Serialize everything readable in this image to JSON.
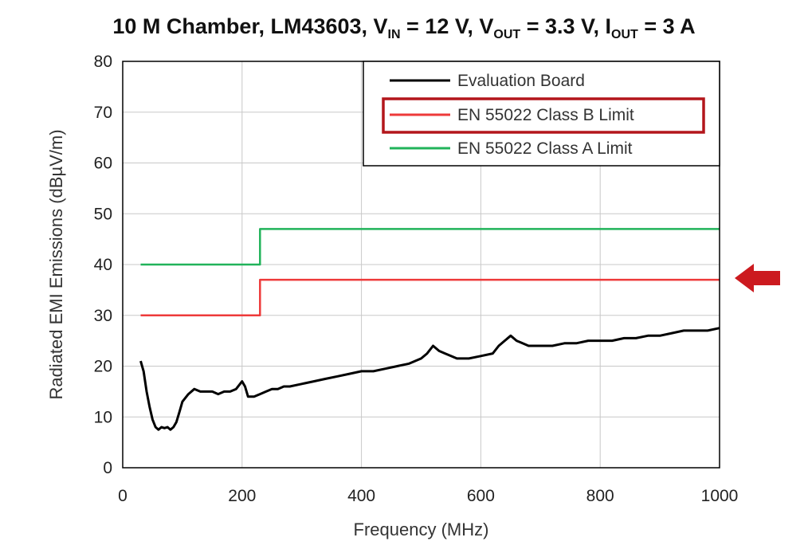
{
  "title": {
    "main": "10 M Chamber, LM43603, V",
    "vin_sub": "IN",
    "vin_val": " = 12 V, V",
    "vout_sub": "OUT",
    "vout_val": " = 3.3 V, I",
    "iout_sub": "OUT",
    "iout_val": " = 3 A"
  },
  "chart_data": {
    "type": "line",
    "xlabel": "Frequency (MHz)",
    "ylabel": "Radiated EMI Emissions (dBµV/m)",
    "xlim": [
      0,
      1000
    ],
    "ylim": [
      0,
      80
    ],
    "xticks": [
      0,
      200,
      400,
      600,
      800,
      1000
    ],
    "yticks": [
      0,
      10,
      20,
      30,
      40,
      50,
      60,
      70,
      80
    ],
    "grid": true,
    "legend_position": "top-right",
    "series": [
      {
        "name": "Evaluation Board",
        "color": "#000000",
        "x": [
          30,
          35,
          40,
          45,
          50,
          55,
          60,
          65,
          70,
          75,
          80,
          85,
          90,
          95,
          100,
          110,
          120,
          130,
          140,
          150,
          160,
          170,
          180,
          190,
          200,
          205,
          210,
          220,
          230,
          240,
          250,
          260,
          270,
          280,
          300,
          320,
          340,
          360,
          380,
          400,
          420,
          440,
          460,
          480,
          500,
          510,
          520,
          530,
          540,
          550,
          560,
          570,
          580,
          600,
          620,
          630,
          640,
          650,
          660,
          670,
          680,
          700,
          720,
          740,
          760,
          780,
          800,
          820,
          840,
          860,
          880,
          900,
          920,
          940,
          960,
          980,
          1000
        ],
        "y": [
          21,
          19,
          15,
          12,
          9.5,
          8,
          7.5,
          8,
          7.8,
          8,
          7.5,
          8,
          9,
          11,
          13,
          14.5,
          15.5,
          15,
          15,
          15,
          14.5,
          15,
          15,
          15.5,
          17,
          16,
          14,
          14,
          14.5,
          15,
          15.5,
          15.5,
          16,
          16,
          16.5,
          17,
          17.5,
          18,
          18.5,
          19,
          19,
          19.5,
          20,
          20.5,
          21.5,
          22.5,
          24,
          23,
          22.5,
          22,
          21.5,
          21.5,
          21.5,
          22,
          22.5,
          24,
          25,
          26,
          25,
          24.5,
          24,
          24,
          24,
          24.5,
          24.5,
          25,
          25,
          25,
          25.5,
          25.5,
          26,
          26,
          26.5,
          27,
          27,
          27,
          27.5
        ]
      },
      {
        "name": "EN 55022 Class B Limit",
        "color": "#ee3a3a",
        "x": [
          30,
          230,
          230,
          1000
        ],
        "y": [
          30,
          30,
          37,
          37
        ]
      },
      {
        "name": "EN 55022 Class A Limit",
        "color": "#21b35a",
        "x": [
          30,
          230,
          230,
          1000
        ],
        "y": [
          40,
          40,
          47,
          47
        ]
      }
    ]
  },
  "highlight_color": "#b3161b",
  "arrow_color": "#cc1a1f"
}
